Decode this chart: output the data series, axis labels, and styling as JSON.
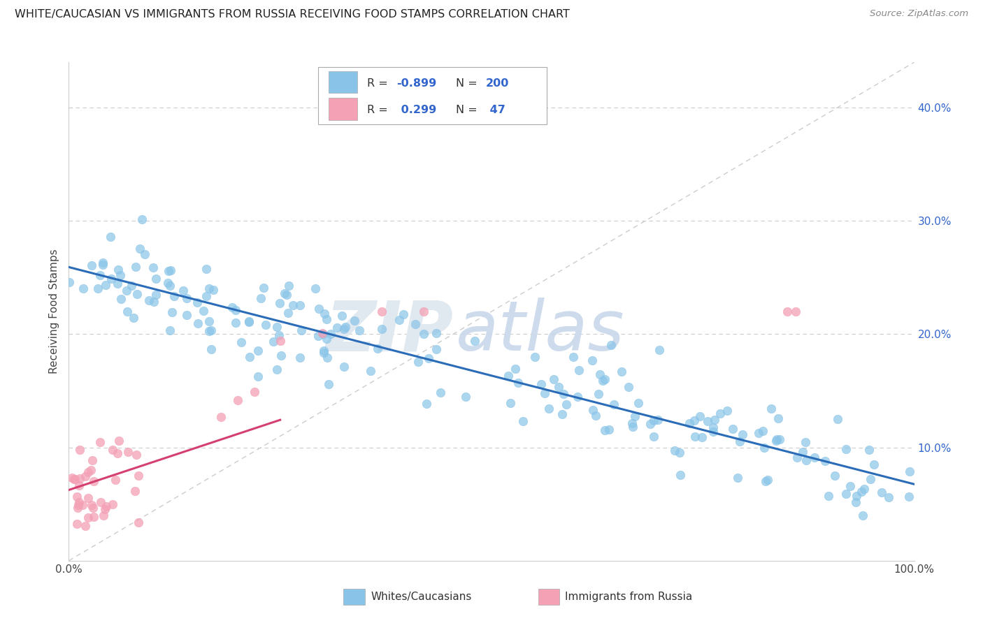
{
  "title": "WHITE/CAUCASIAN VS IMMIGRANTS FROM RUSSIA RECEIVING FOOD STAMPS CORRELATION CHART",
  "source": "Source: ZipAtlas.com",
  "ylabel": "Receiving Food Stamps",
  "xlim": [
    0.0,
    1.0
  ],
  "ylim": [
    0.0,
    0.44
  ],
  "yticks": [
    0.0,
    0.1,
    0.2,
    0.3,
    0.4
  ],
  "xticks": [
    0.0,
    1.0
  ],
  "xtick_labels": [
    "0.0%",
    "100.0%"
  ],
  "right_ytick_labels": [
    "",
    "10.0%",
    "20.0%",
    "30.0%",
    "40.0%"
  ],
  "blue_R": "-0.899",
  "blue_N": "200",
  "pink_R": "0.299",
  "pink_N": "47",
  "blue_color": "#89C4E8",
  "pink_color": "#F4A0B5",
  "blue_line_color": "#2B6CB8",
  "pink_line_color": "#D44070",
  "diag_color": "#CCCCCC",
  "legend_stat_color": "#3366CC",
  "background_color": "#FFFFFF",
  "grid_color": "#CCCCCC",
  "blue_line_x0": 0.0,
  "blue_line_y0": 0.258,
  "blue_line_x1": 1.0,
  "blue_line_y1": 0.072,
  "pink_line_x0": 0.0,
  "pink_line_y0": 0.055,
  "pink_line_x1": 0.25,
  "pink_line_y1": 0.175
}
